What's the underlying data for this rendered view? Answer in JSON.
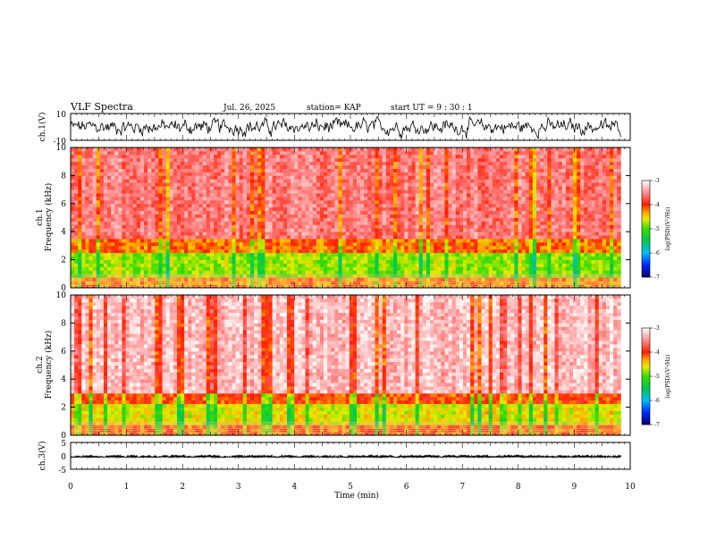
{
  "header": {
    "title": "VLF Spectra",
    "date": "Jul. 26, 2025",
    "station": "station= KAP",
    "start_ut": "start UT =  9 : 30 : 1"
  },
  "chart_data": [
    {
      "type": "line",
      "name": "ch1-waveform",
      "ylabel": "ch.1(V)",
      "ylim": [
        -10,
        10
      ],
      "ytick_labels": [
        "10",
        "-10"
      ],
      "x_range_min": [
        0,
        9.83
      ],
      "trace_mean_v": 0,
      "trace_amplitude_v": 7
    },
    {
      "type": "heatmap",
      "name": "ch1-spectrogram",
      "ylabel": "ch.1",
      "ylabel2": "Frequency (kHz)",
      "ylim": [
        0,
        10
      ],
      "ytick_labels": [
        "0",
        "2",
        "4",
        "6",
        "8",
        "10"
      ],
      "x_range_min": [
        0,
        9.83
      ],
      "colorbar": {
        "label": "log(PSD)(V²/Hz)",
        "range": [
          -7,
          -3
        ],
        "tick_labels": [
          "-3",
          "-4",
          "-5",
          "-6",
          "-7"
        ]
      },
      "bands": [
        {
          "f_khz": [
            0,
            0.8
          ],
          "level": -4.4
        },
        {
          "f_khz": [
            0.8,
            2.4
          ],
          "level": -4.9
        },
        {
          "f_khz": [
            2.4,
            3.6
          ],
          "level": -4.3
        },
        {
          "f_khz": [
            3.6,
            10
          ],
          "level": -3.7
        }
      ]
    },
    {
      "type": "heatmap",
      "name": "ch2-spectrogram",
      "ylabel": "ch.2",
      "ylabel2": "Frequency (kHz)",
      "ylim": [
        0,
        10
      ],
      "ytick_labels": [
        "0",
        "2",
        "4",
        "6",
        "8",
        "10"
      ],
      "x_range_min": [
        0,
        9.83
      ],
      "colorbar": {
        "label": "log(PSD)(V²/Hz)",
        "range": [
          -7,
          -3
        ],
        "tick_labels": [
          "-3",
          "-4",
          "-5",
          "-6",
          "-7"
        ]
      },
      "bands": [
        {
          "f_khz": [
            0,
            0.8
          ],
          "level": -4.3
        },
        {
          "f_khz": [
            0.8,
            2.2
          ],
          "level": -4.7
        },
        {
          "f_khz": [
            2.2,
            3.0
          ],
          "level": -4.2
        },
        {
          "f_khz": [
            3.0,
            10
          ],
          "level": -3.4
        }
      ]
    },
    {
      "type": "line",
      "name": "ch3-waveform",
      "ylabel": "ch.3(V)",
      "ylim": [
        -5,
        5
      ],
      "ytick_labels": [
        "5",
        "0",
        "-5"
      ],
      "x_range_min": [
        0,
        9.83
      ],
      "trace_mean_v": -0.1,
      "trace_amplitude_v": 0.5
    }
  ],
  "xaxis": {
    "label": "Time (min)",
    "range": [
      0,
      10
    ],
    "tick_labels": [
      "0",
      "1",
      "2",
      "3",
      "4",
      "5",
      "6",
      "7",
      "8",
      "9",
      "10"
    ]
  }
}
